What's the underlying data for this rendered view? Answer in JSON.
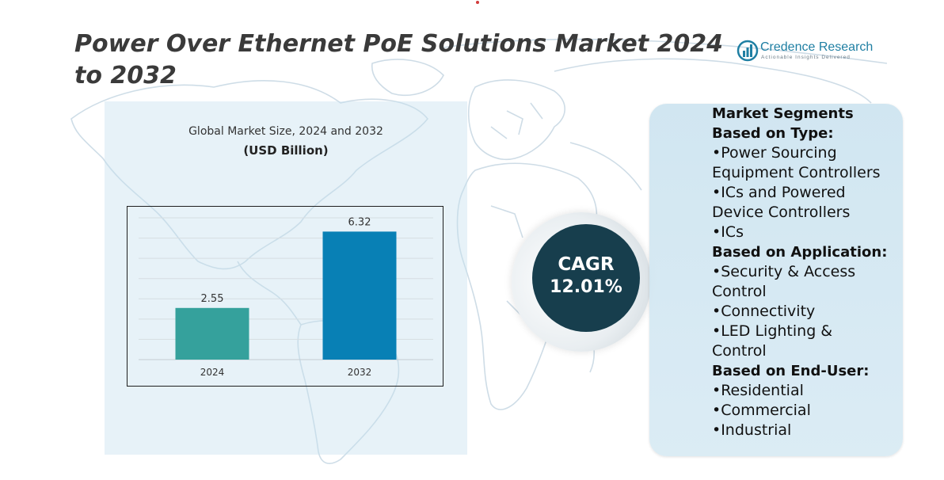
{
  "title": "Power Over Ethernet PoE Solutions Market 2024 to 2032",
  "logo": {
    "name": "Credence Research",
    "tagline": "Actionable Insights Delivered",
    "mark": "bar-chart-mark-icon"
  },
  "chart_title": "Global Market Size, 2024 and 2032",
  "chart_unit": "(USD Billion)",
  "chart_data": {
    "type": "bar",
    "title": "Global Market Size, 2024 and 2032",
    "ylabel": "",
    "xlabel": "",
    "categories": [
      "2024",
      "2032"
    ],
    "values": [
      2.55,
      6.32
    ],
    "value_labels": [
      "2.55",
      "6.32"
    ],
    "ylim": [
      0,
      7
    ],
    "grid": true,
    "colors": [
      "#35a19c",
      "#0880b5"
    ]
  },
  "cagr": {
    "label": "CAGR",
    "value": "12.01%"
  },
  "segments": {
    "lines": [
      {
        "text": "Market Segments",
        "bold": true
      },
      {
        "text": "Based on Type:",
        "bold": true
      },
      {
        "text": "•Power Sourcing",
        "bold": false
      },
      {
        "text": "Equipment Controllers",
        "bold": false
      },
      {
        "text": "•ICs and Powered",
        "bold": false
      },
      {
        "text": "Device Controllers",
        "bold": false
      },
      {
        "text": "•ICs",
        "bold": false
      },
      {
        "text": "Based on Application:",
        "bold": true
      },
      {
        "text": "•Security & Access",
        "bold": false
      },
      {
        "text": "Control",
        "bold": false
      },
      {
        "text": "•Connectivity",
        "bold": false
      },
      {
        "text": "•LED Lighting &",
        "bold": false
      },
      {
        "text": "Control",
        "bold": false
      },
      {
        "text": "Based on End-User:",
        "bold": true
      },
      {
        "text": "•Residential",
        "bold": false
      },
      {
        "text": "•Commercial",
        "bold": false
      },
      {
        "text": "•Industrial",
        "bold": false
      }
    ]
  },
  "colors": {
    "title": "#3a3a3a",
    "brand": "#1f7fa3",
    "cagr_bg": "#173e4d",
    "panel_bg": "#cde4f0"
  }
}
